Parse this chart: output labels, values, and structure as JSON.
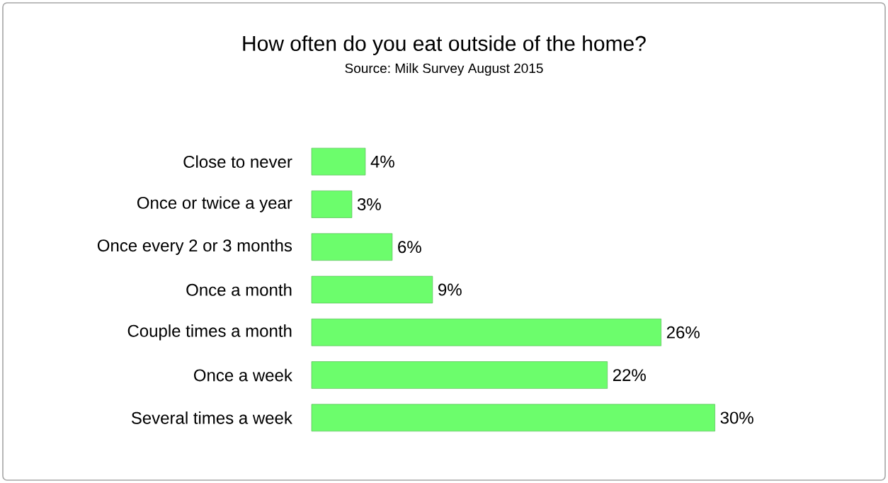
{
  "chart_data": {
    "type": "bar",
    "orientation": "horizontal",
    "title": "How often do you eat outside of the home?",
    "subtitle": "Source: Milk Survey August 2015",
    "categories": [
      "Close to never",
      "Once or twice a year",
      "Once every 2 or 3 months",
      "Once a month",
      "Couple times a month",
      "Once a week",
      "Several times a week"
    ],
    "values": [
      4,
      3,
      6,
      9,
      26,
      22,
      30
    ],
    "value_labels": [
      "4%",
      "3%",
      "6%",
      "9%",
      "26%",
      "22%",
      "30%"
    ],
    "color": "#6cfd6c"
  }
}
